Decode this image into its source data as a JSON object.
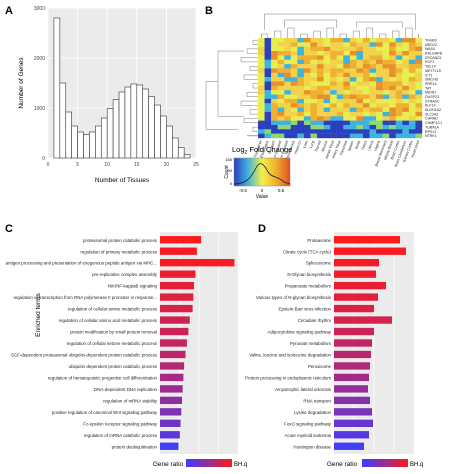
{
  "panels": {
    "a": "A",
    "b": "B",
    "c": "C",
    "d": "D"
  },
  "legend_b": {
    "title": "Log",
    "subscript": "2",
    "title_suffix": " Fold Change",
    "count_label": "Count",
    "value_label": "Value",
    "ticks": [
      "-0.5",
      "0",
      "0.5"
    ],
    "count_ticks": [
      "0",
      "50",
      "150"
    ]
  },
  "bh_legend": {
    "label": "BH.q"
  },
  "heatmap_rows": [
    "TFAM3",
    "MED22",
    "WAS4",
    "RALGAPB",
    "ZSCAN23",
    "RCF1",
    "TBL1X",
    "METTL15",
    "ICT1",
    "SMCHD",
    "PRR14",
    "TAT",
    "MIDN1",
    "DUSP23",
    "STRADC",
    "KLF14",
    "ALDH1A2",
    "SLC2A2",
    "CHRAD",
    "CHMP1C1",
    "TUBA1A",
    "RPS11",
    "NTRK1"
  ],
  "heatmap_cols": [
    "Colon Transverse",
    "Esophagus",
    "Stomach",
    "Skin Sun Exposed",
    "Skin Not Sun Exposed",
    "Adipose Subcutaneous",
    "Heart LV",
    "Liver",
    "Lung",
    "Thyroid",
    "Muscle",
    "Nerve Tibial",
    "Artery Tibial",
    "Pancreas",
    "Spleen",
    "Testis",
    "Ovary",
    "Uterus",
    "Vagina",
    "Breast Mammary",
    "Whole Blood",
    "Brain Cortex",
    "Brain Cerebellum",
    "Kidney Cortex",
    "Heart Atrial"
  ],
  "chart_data": [
    {
      "panel": "A",
      "type": "bar",
      "xlabel": "Number of Tissues",
      "ylabel": "Number of Genes",
      "xlim": [
        0,
        25
      ],
      "ylim": [
        0,
        3000
      ],
      "x_ticks": [
        0,
        5,
        10,
        15,
        20,
        25
      ],
      "y_ticks": [
        0,
        1000,
        2000,
        3000
      ],
      "bin_edges": [
        1,
        2,
        3,
        4,
        5,
        6,
        7,
        8,
        9,
        10,
        11,
        12,
        13,
        14,
        15,
        16,
        17,
        18,
        19,
        20,
        21,
        22,
        23,
        24
      ],
      "values": [
        2800,
        1500,
        920,
        640,
        520,
        470,
        520,
        640,
        800,
        990,
        1170,
        1320,
        1420,
        1480,
        1460,
        1380,
        1230,
        1060,
        840,
        640,
        400,
        210,
        70
      ],
      "grid": true
    },
    {
      "panel": "C",
      "type": "bar",
      "orientation": "horizontal",
      "xlabel": "Gene ratio",
      "ylabel": "Enriched terms",
      "xlim": [
        0,
        1.1
      ],
      "grid": true,
      "legend": {
        "title": "BH.q",
        "position": "bottom-right"
      },
      "categories": [
        "proteasomal protein catabolic process",
        "regulation of primary metabolic process",
        "antigen processing and presentation of exogenous peptide antigen via MHC...",
        "pre-replicative complex assembly",
        "NIK/NF-kappaB signaling",
        "regulation of transcription from RNA polymerase II promoter in response...",
        "regulation of cellular amine metabolic process",
        "regulation of cellular amino acid metabolic process",
        "protein modification by small protein removal",
        "regulation of cellular ketone metabolic process",
        "SCF-dependent proteasomal ubiquitin-dependent protein catabolic process",
        "ubiquitin-dependent protein catabolic process",
        "regulation of hematopoietic progenitor cell differentiation",
        "DNA-dependent DNA replication",
        "regulation of mRNA stability",
        "positive regulation of canonical Wnt signaling pathway",
        "Fc-epsilon receptor signaling pathway",
        "regulation of mRNA catabolic process",
        "protein deubiquitination"
      ],
      "values": [
        0.58,
        0.52,
        1.05,
        0.5,
        0.48,
        0.47,
        0.46,
        0.42,
        0.4,
        0.38,
        0.36,
        0.34,
        0.33,
        0.32,
        0.31,
        0.3,
        0.29,
        0.28,
        0.26
      ],
      "bh_q_rank": [
        0.02,
        0.05,
        0.04,
        0.1,
        0.13,
        0.17,
        0.2,
        0.24,
        0.27,
        0.31,
        0.35,
        0.4,
        0.46,
        0.52,
        0.58,
        0.66,
        0.74,
        0.85,
        0.96
      ]
    },
    {
      "panel": "D",
      "type": "bar",
      "orientation": "horizontal",
      "xlabel": "Gene ratio",
      "xlim": [
        0,
        0.8
      ],
      "grid": true,
      "legend": {
        "title": "BH.q",
        "position": "bottom-right"
      },
      "categories": [
        "Proteasome",
        "Citrate cycle (TCA cycle)",
        "Spliceosome",
        "N-Glycan biosynthesis",
        "Propanoate metabolism",
        "Various types of N-glycan biosynthesis",
        "Epstein-Barr virus infection",
        "Circadian rhythm",
        "Adipocytokine signaling pathway",
        "Pyruvate metabolism",
        "Valine, leucine and isoleucine degradation",
        "Peroxisome",
        "Protein processing in endoplasmic reticulum",
        "Amyotrophic lateral sclerosis",
        "RNA transport",
        "Lysine degradation",
        "FoxO signaling pathway",
        "Acute myeloid leukemia",
        "Huntington disease"
      ],
      "values": [
        0.66,
        0.72,
        0.45,
        0.42,
        0.52,
        0.44,
        0.4,
        0.58,
        0.4,
        0.38,
        0.37,
        0.36,
        0.35,
        0.34,
        0.36,
        0.38,
        0.39,
        0.35,
        0.3
      ],
      "bh_q_rank": [
        0.01,
        0.03,
        0.05,
        0.08,
        0.11,
        0.14,
        0.18,
        0.22,
        0.27,
        0.32,
        0.37,
        0.42,
        0.48,
        0.55,
        0.62,
        0.7,
        0.78,
        0.87,
        0.96
      ]
    }
  ],
  "colors": {
    "bar_high": "#ff1a1a",
    "bar_low": "#3d3dff",
    "grid_bg": "#ebebeb",
    "hist_fill": "#ffffff"
  }
}
